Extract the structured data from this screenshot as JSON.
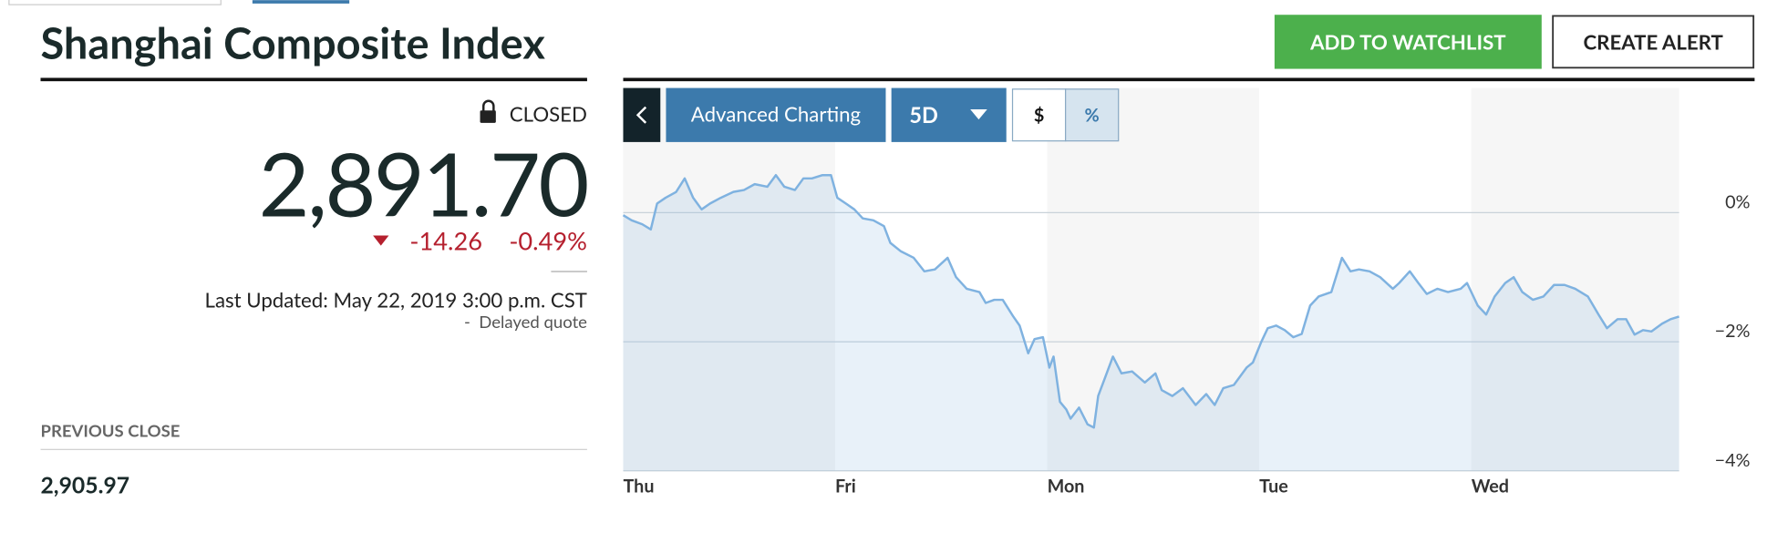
{
  "header": {
    "title": "Shanghai Composite Index",
    "watchlist_button": "ADD TO WATCHLIST",
    "alert_button": "CREATE ALERT"
  },
  "quote": {
    "status": "CLOSED",
    "price": "2,891.70",
    "change": "-14.26",
    "change_percent": "-0.49%",
    "last_updated": "Last Updated: May 22, 2019 3:00 p.m. CST",
    "delay_note": "-  Delayed quote",
    "previous_close_label": "PREVIOUS CLOSE",
    "previous_close": "2,905.97"
  },
  "toolbar": {
    "advanced": "Advanced Charting",
    "range": "5D",
    "dollar": "$",
    "percent": "%"
  },
  "chart_data": {
    "type": "area",
    "x": [
      0,
      0.04,
      0.09,
      0.13,
      0.16,
      0.2,
      0.25,
      0.29,
      0.33,
      0.37,
      0.41,
      0.46,
      0.52,
      0.57,
      0.62,
      0.68,
      0.72,
      0.76,
      0.81,
      0.85,
      0.89,
      0.94,
      0.98,
      1.01,
      1.05,
      1.09,
      1.13,
      1.18,
      1.23,
      1.26,
      1.31,
      1.37,
      1.42,
      1.47,
      1.53,
      1.57,
      1.62,
      1.68,
      1.71,
      1.75,
      1.79,
      1.84,
      1.87,
      1.91,
      1.94,
      1.98,
      2.01,
      2.03,
      2.06,
      2.09,
      2.11,
      2.15,
      2.19,
      2.22,
      2.24,
      2.27,
      2.31,
      2.35,
      2.4,
      2.46,
      2.51,
      2.54,
      2.59,
      2.64,
      2.7,
      2.75,
      2.79,
      2.83,
      2.88,
      2.94,
      2.97,
      3.01,
      3.04,
      3.08,
      3.12,
      3.16,
      3.2,
      3.24,
      3.28,
      3.34,
      3.39,
      3.43,
      3.47,
      3.52,
      3.57,
      3.63,
      3.66,
      3.71,
      3.75,
      3.79,
      3.84,
      3.89,
      3.95,
      3.98,
      4.03,
      4.07,
      4.11,
      4.16,
      4.2,
      4.24,
      4.29,
      4.34,
      4.39,
      4.44,
      4.49,
      4.55,
      4.6,
      4.64,
      4.69,
      4.73,
      4.77,
      4.81,
      4.85,
      4.9,
      4.94,
      4.98
    ],
    "series": [
      {
        "color": "#7fb2e0",
        "values": [
          -0.04,
          -0.12,
          -0.18,
          -0.26,
          0.14,
          0.23,
          0.32,
          0.53,
          0.23,
          0.05,
          0.14,
          0.23,
          0.32,
          0.35,
          0.44,
          0.4,
          0.58,
          0.4,
          0.35,
          0.53,
          0.53,
          0.58,
          0.58,
          0.23,
          0.14,
          0.05,
          -0.09,
          -0.12,
          -0.21,
          -0.47,
          -0.6,
          -0.7,
          -0.91,
          -0.88,
          -0.7,
          -1,
          -1.18,
          -1.23,
          -1.4,
          -1.35,
          -1.35,
          -1.61,
          -1.75,
          -2.18,
          -1.96,
          -1.93,
          -2.4,
          -2.23,
          -2.93,
          -3.05,
          -3.19,
          -3.02,
          -3.28,
          -3.33,
          -2.84,
          -2.58,
          -2.23,
          -2.49,
          -2.46,
          -2.63,
          -2.49,
          -2.75,
          -2.84,
          -2.72,
          -2.98,
          -2.81,
          -2.98,
          -2.72,
          -2.67,
          -2.4,
          -2.32,
          -2,
          -1.79,
          -1.75,
          -1.82,
          -1.93,
          -1.88,
          -1.44,
          -1.3,
          -1.23,
          -0.7,
          -0.91,
          -0.88,
          -0.91,
          -1,
          -1.18,
          -1.09,
          -0.91,
          -1.09,
          -1.26,
          -1.18,
          -1.23,
          -1.18,
          -1.09,
          -1.44,
          -1.58,
          -1.3,
          -1.09,
          -1,
          -1.23,
          -1.35,
          -1.3,
          -1.12,
          -1.12,
          -1.18,
          -1.3,
          -1.58,
          -1.79,
          -1.65,
          -1.65,
          -1.89,
          -1.82,
          -1.84,
          -1.72,
          -1.65,
          -1.61
        ]
      }
    ],
    "xlim": [
      0,
      4.98
    ],
    "xticks": [
      {
        "value": 0,
        "label": "Thu"
      },
      {
        "value": 1,
        "label": "Fri"
      },
      {
        "value": 2,
        "label": "Mon"
      },
      {
        "value": 3,
        "label": "Tue"
      },
      {
        "value": 4,
        "label": "Wed"
      }
    ],
    "ylim": [
      -4,
      1.93
    ],
    "yticks": [
      {
        "value": 0,
        "label": "0%"
      },
      {
        "value": -2,
        "label": "−2%"
      },
      {
        "value": -4,
        "label": "−4%"
      }
    ],
    "grid": true
  }
}
